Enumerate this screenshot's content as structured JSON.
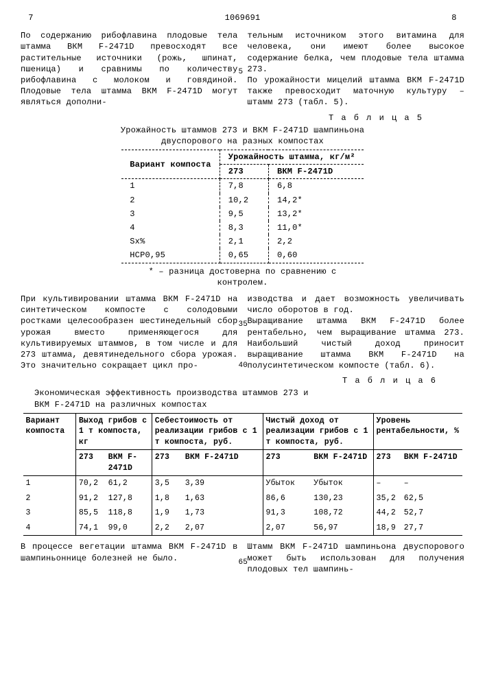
{
  "header": {
    "page_left": "7",
    "doc_num": "1069691",
    "page_right": "8"
  },
  "para1_left": "По содержанию рибофлавина плодовые тела штамма ВКМ F-2471D превосходят все растительные источники (рожь, шпинат, пшеница) и сравнимы по количеству рибофлавина с молоком и говядиной. Плодовые тела штамма ВКМ F-2471D могут являться дополни-",
  "para1_right": "тельным источником этого витамина для человека, они имеют более высокое содержание белка, чем плодовые тела штамма 273.\nПо урожайности мицелий штамма ВКМ F-2471D также превосходит маточную культуру – штамм 273 (табл. 5).",
  "ln5": "5",
  "table5_label": "Т а б л и ц а  5",
  "table5_caption": "Урожайность штаммов 273 и ВКМ F-2471D шампиньона двуспорового на разных компостах",
  "table5": {
    "h_variant": "Вариант компоста",
    "h_yield": "Урожайность штамма, кг/м²",
    "h_273": "273",
    "h_bkm": "ВКМ F-2471D",
    "rows": [
      {
        "v": "1",
        "a": "7,8",
        "b": "6,8"
      },
      {
        "v": "2",
        "a": "10,2",
        "b": "14,2*"
      },
      {
        "v": "3",
        "a": "9,5",
        "b": "13,2*"
      },
      {
        "v": "4",
        "a": "8,3",
        "b": "11,0*"
      },
      {
        "v": "Sx%",
        "a": "2,1",
        "b": "2,2"
      },
      {
        "v": "НСР0,95",
        "a": "0,65",
        "b": "0,60"
      }
    ],
    "footnote": "* – разница достоверна по сравнению с контролем."
  },
  "para2_left": "При культивировании штамма ВКМ F-2471D на синтетическом компосте с солодовыми ростками целесообразен шестинедельный сбор урожая вместо применяющегося для культивируемых штаммов, в том числе и для 273 штамма, девятинедельного сбора урожая. Это значительно сокращает цикл про-",
  "para2_right": "изводства и дает возможность увеличивать число оборотов в год.\nВыращивание штамма ВКМ F-2471D более рентабельно, чем выращивание штамма 273. Наибольший чистый доход приносит выращивание штамма ВКМ F-2471D на полусинтетическом компосте (табл. 6).",
  "ln35": "35",
  "ln40": "40",
  "table6_label": "Т а б л и ц а  6",
  "table6_caption": "Экономическая эффективность производства штаммов 273 и ВКМ F-2471D на различных компостах",
  "table6": {
    "h_variant": "Вариант компоста",
    "h_out": "Выход грибов с 1 т компоста, кг",
    "h_cost": "Себестоимость от реализации грибов с 1 т компоста, руб.",
    "h_profit": "Чистый доход от реализации грибов с 1 т компоста, руб.",
    "h_rent": "Уровень рентабельности, %",
    "h_273": "273",
    "h_bkm": "ВКМ F-2471D",
    "rows": [
      {
        "v": "1",
        "o1": "70,2",
        "o2": "61,2",
        "c1": "3,5",
        "c2": "3,39",
        "p1": "Убыток",
        "p2": "Убыток",
        "r1": "–",
        "r2": "–"
      },
      {
        "v": "2",
        "o1": "91,2",
        "o2": "127,8",
        "c1": "1,8",
        "c2": "1,63",
        "p1": "86,6",
        "p2": "130,23",
        "r1": "35,2",
        "r2": "62,5"
      },
      {
        "v": "3",
        "o1": "85,5",
        "o2": "118,8",
        "c1": "1,9",
        "c2": "1,73",
        "p1": "91,3",
        "p2": "108,72",
        "r1": "44,2",
        "r2": "52,7"
      },
      {
        "v": "4",
        "o1": "74,1",
        "o2": "99,0",
        "c1": "2,2",
        "c2": "2,07",
        "p1": "2,07",
        "p2": "56,97",
        "r1": "18,9",
        "r2": "27,7"
      }
    ]
  },
  "para3_left": "В процессе вегетации штамма ВКМ F-2471D в шампиньоннице болезней не было.",
  "para3_right": "Штамм ВКМ F-2471D шампиньона двуспорового может быть использован для получения плодовых тел шампинь-",
  "ln65": "65"
}
